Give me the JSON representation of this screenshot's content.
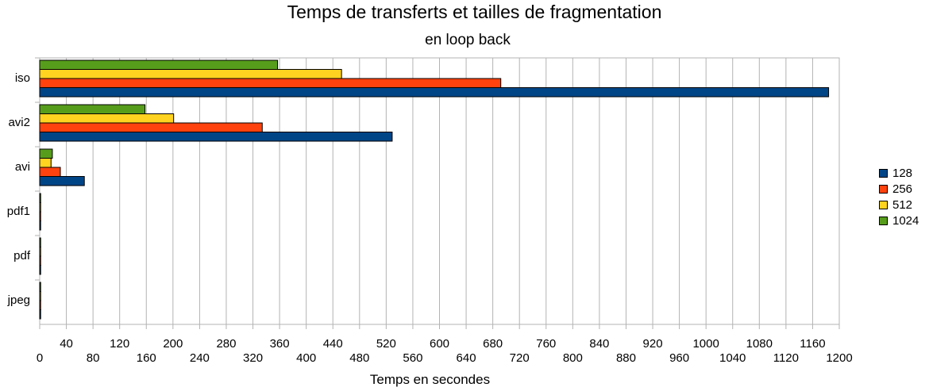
{
  "chart_data": {
    "type": "bar",
    "orientation": "horizontal",
    "title": "Temps de transferts et tailles de fragmentation",
    "subtitle": "en loop back",
    "xlabel": "Temps en secondes",
    "ylabel": "",
    "xlim": [
      0,
      1200
    ],
    "x_ticks": [
      0,
      40,
      80,
      120,
      160,
      200,
      240,
      280,
      320,
      360,
      400,
      440,
      480,
      520,
      560,
      600,
      640,
      680,
      720,
      760,
      800,
      840,
      880,
      920,
      960,
      1000,
      1040,
      1080,
      1120,
      1160,
      1200
    ],
    "grid": true,
    "legend_position": "right",
    "categories": [
      "iso",
      "avi2",
      "avi",
      "pdf1",
      "pdf",
      "jpeg"
    ],
    "series": [
      {
        "name": "128",
        "color": "#004586",
        "values": [
          1184,
          529,
          67,
          1,
          1,
          1
        ]
      },
      {
        "name": "256",
        "color": "#ff420e",
        "values": [
          692,
          334,
          31,
          1,
          1,
          1
        ]
      },
      {
        "name": "512",
        "color": "#ffd320",
        "values": [
          453,
          201,
          17,
          1,
          1,
          1
        ]
      },
      {
        "name": "1024",
        "color": "#579d1c",
        "values": [
          357,
          158,
          19,
          1,
          1,
          1
        ]
      }
    ]
  }
}
